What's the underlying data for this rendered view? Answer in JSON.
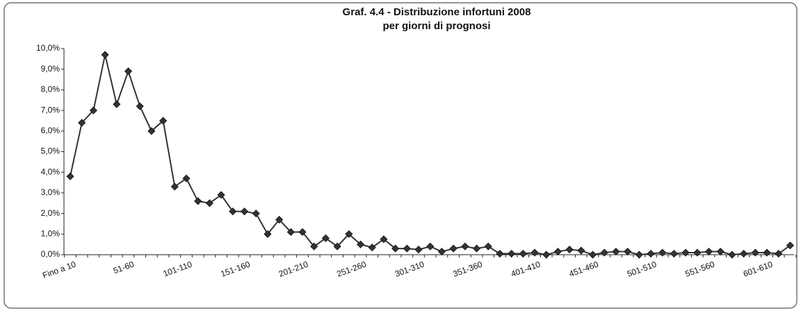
{
  "chart_data": {
    "type": "line",
    "title": [
      "Graf. 4.4 - Distribuzione infortuni 2008",
      "per giorni di prognosi"
    ],
    "categories": [
      "Fino a 10",
      null,
      null,
      null,
      null,
      "51-60",
      null,
      null,
      null,
      null,
      "101-110",
      null,
      null,
      null,
      null,
      "151-160",
      null,
      null,
      null,
      null,
      "201-210",
      null,
      null,
      null,
      null,
      "251-260",
      null,
      null,
      null,
      null,
      "301-310",
      null,
      null,
      null,
      null,
      "351-360",
      null,
      null,
      null,
      null,
      "401-410",
      null,
      null,
      null,
      null,
      "451-460",
      null,
      null,
      null,
      null,
      "501-510",
      null,
      null,
      null,
      null,
      "551-560",
      null,
      null,
      null,
      null,
      "601-610",
      null,
      null
    ],
    "values": [
      3.8,
      6.4,
      7.0,
      9.7,
      7.3,
      8.9,
      7.2,
      6.0,
      6.5,
      3.3,
      3.7,
      2.6,
      2.5,
      2.9,
      2.1,
      2.1,
      2.0,
      1.0,
      1.7,
      1.1,
      1.1,
      0.4,
      0.8,
      0.4,
      1.0,
      0.5,
      0.35,
      0.75,
      0.3,
      0.3,
      0.25,
      0.4,
      0.15,
      0.3,
      0.4,
      0.3,
      0.4,
      0.05,
      0.05,
      0.05,
      0.1,
      0,
      0.15,
      0.25,
      0.2,
      0,
      0.1,
      0.15,
      0.15,
      0,
      0.05,
      0.1,
      0.05,
      0.1,
      0.1,
      0.15,
      0.15,
      0,
      0.05,
      0.1,
      0.1,
      0.05,
      0.45
    ],
    "color": "#333333",
    "ylim": [
      0,
      10
    ],
    "yticks": [
      {
        "value": 0,
        "label": "0,0%"
      },
      {
        "value": 1,
        "label": "1,0%"
      },
      {
        "value": 2,
        "label": "2,0%"
      },
      {
        "value": 3,
        "label": "3,0%"
      },
      {
        "value": 4,
        "label": "4,0%"
      },
      {
        "value": 5,
        "label": "5,0%"
      },
      {
        "value": 6,
        "label": "6,0%"
      },
      {
        "value": 7,
        "label": "7,0%"
      },
      {
        "value": 8,
        "label": "8,0%"
      },
      {
        "value": 9,
        "label": "9,0%"
      },
      {
        "value": 10,
        "label": "10,0%"
      }
    ],
    "grid": false
  }
}
